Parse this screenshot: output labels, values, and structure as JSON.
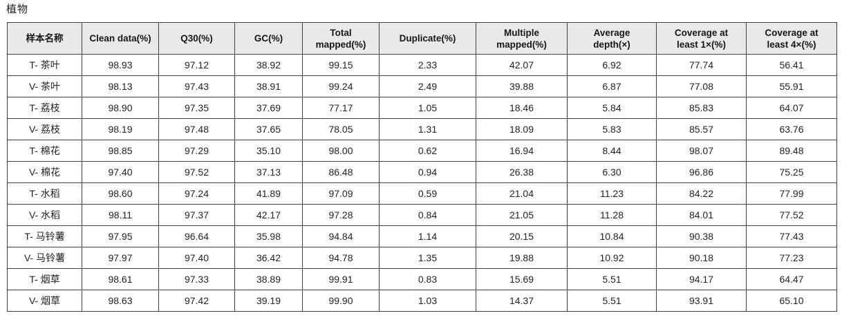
{
  "page": {
    "title": "植物"
  },
  "colors": {
    "header_bg": "#e9e9e9",
    "border": "#3f3f3f",
    "text": "#1f1f1f"
  },
  "table": {
    "columns": [
      "样本名称",
      "Clean data(%)",
      "Q30(%)",
      "GC(%)",
      "Total mapped(%)",
      "Duplicate(%)",
      "Multiple mapped(%)",
      "Average depth(×)",
      "Coverage at least 1×(%)",
      "Coverage at least 4×(%)"
    ],
    "rows": [
      {
        "name": "T- 茶叶",
        "values": [
          "98.93",
          "97.12",
          "38.92",
          "99.15",
          "2.33",
          "42.07",
          "6.92",
          "77.74",
          "56.41"
        ]
      },
      {
        "name": "V- 茶叶",
        "values": [
          "98.13",
          "97.43",
          "38.91",
          "99.24",
          "2.49",
          "39.88",
          "6.87",
          "77.08",
          "55.91"
        ]
      },
      {
        "name": "T- 荔枝",
        "values": [
          "98.90",
          "97.35",
          "37.69",
          "77.17",
          "1.05",
          "18.46",
          "5.84",
          "85.83",
          "64.07"
        ]
      },
      {
        "name": "V- 荔枝",
        "values": [
          "98.19",
          "97.48",
          "37.65",
          "78.05",
          "1.31",
          "18.09",
          "5.83",
          "85.57",
          "63.76"
        ]
      },
      {
        "name": "T- 棉花",
        "values": [
          "98.85",
          "97.29",
          "35.10",
          "98.00",
          "0.62",
          "16.94",
          "8.44",
          "98.07",
          "89.48"
        ]
      },
      {
        "name": "V- 棉花",
        "values": [
          "97.40",
          "97.52",
          "37.13",
          "86.48",
          "0.94",
          "26.38",
          "6.30",
          "96.86",
          "75.25"
        ]
      },
      {
        "name": "T- 水稻",
        "values": [
          "98.60",
          "97.24",
          "41.89",
          "97.09",
          "0.59",
          "21.04",
          "11.23",
          "84.22",
          "77.99"
        ]
      },
      {
        "name": "V- 水稻",
        "values": [
          "98.11",
          "97.37",
          "42.17",
          "97.28",
          "0.84",
          "21.05",
          "11.28",
          "84.01",
          "77.52"
        ]
      },
      {
        "name": "T- 马铃薯",
        "values": [
          "97.95",
          "96.64",
          "35.98",
          "94.84",
          "1.14",
          "20.15",
          "10.84",
          "90.38",
          "77.43"
        ]
      },
      {
        "name": "V- 马铃薯",
        "values": [
          "97.97",
          "97.40",
          "36.42",
          "94.78",
          "1.35",
          "19.88",
          "10.92",
          "90.18",
          "77.23"
        ]
      },
      {
        "name": "T- 烟草",
        "values": [
          "98.61",
          "97.33",
          "38.89",
          "99.91",
          "0.83",
          "15.69",
          "5.51",
          "94.17",
          "64.47"
        ]
      },
      {
        "name": "V- 烟草",
        "values": [
          "98.63",
          "97.42",
          "39.19",
          "99.90",
          "1.03",
          "14.37",
          "5.51",
          "93.91",
          "65.10"
        ]
      }
    ]
  }
}
